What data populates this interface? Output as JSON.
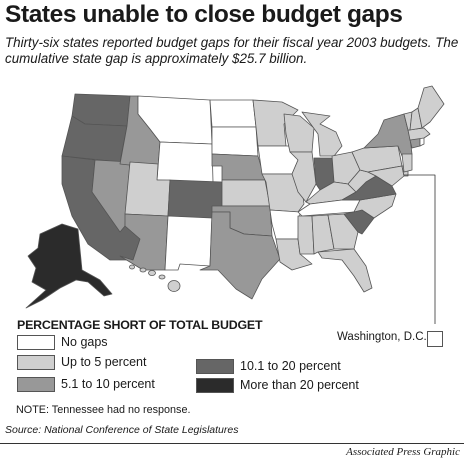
{
  "title": "States unable to close budget gaps",
  "subtitle": "Thirty-six states reported budget gaps for their fiscal year 2003 budgets. The cumulative state gap is approximately $25.7 billion.",
  "colors": {
    "none": "#ffffff",
    "low": "#cfcfcf",
    "mid": "#989898",
    "high": "#666666",
    "max": "#2b2b2b",
    "border": "#555555"
  },
  "legend": {
    "title": "PERCENTAGE SHORT OF TOTAL BUDGET",
    "items": [
      {
        "label": "No gaps",
        "color": "#ffffff"
      },
      {
        "label": "Up to 5 percent",
        "color": "#cfcfcf"
      },
      {
        "label": "5.1 to 10 percent",
        "color": "#989898"
      },
      {
        "label": "10.1 to 20 percent",
        "color": "#666666"
      },
      {
        "label": "More than 20 percent",
        "color": "#2b2b2b"
      }
    ]
  },
  "dc_label": "Washington, D.C.",
  "note": "NOTE: Tennessee had no response.",
  "source": "Source: National Conference of State Legislatures",
  "credit": "Associated Press Graphic"
}
